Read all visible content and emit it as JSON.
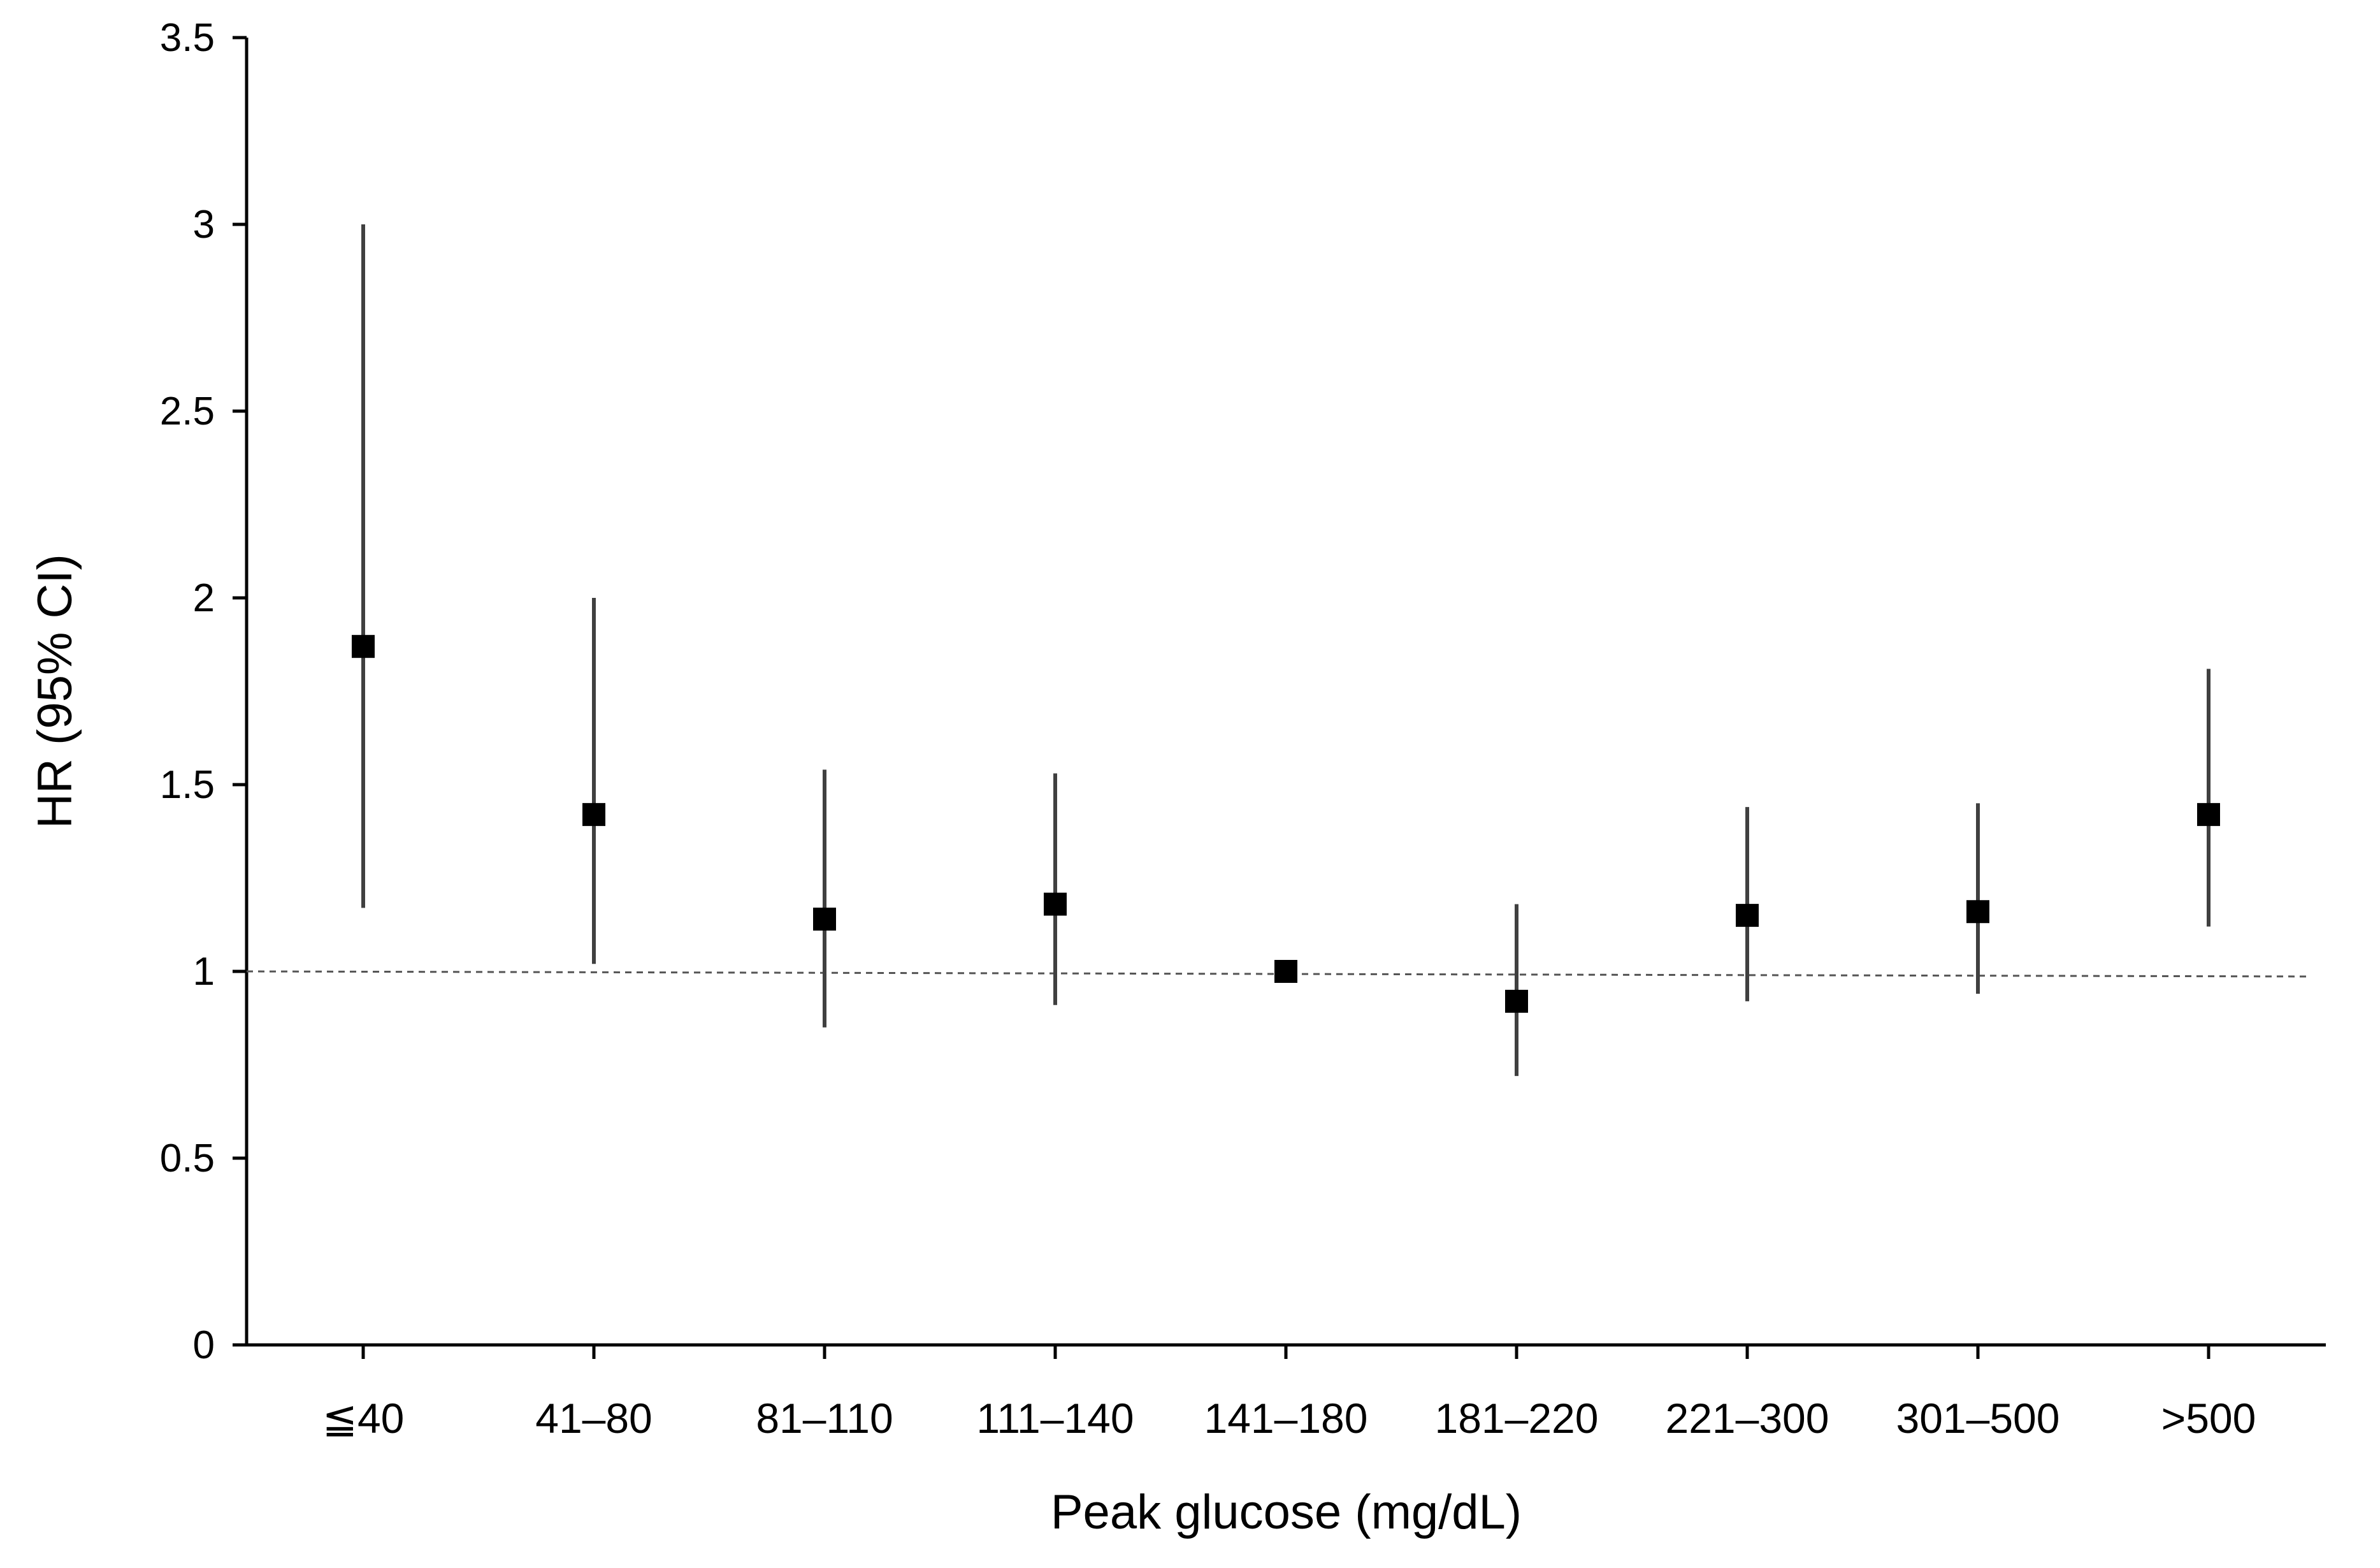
{
  "chart_data": {
    "type": "scatter",
    "subtype": "error-bar",
    "xlabel": "Peak glucose (mg/dL)",
    "ylabel": "HR (95% CI)",
    "categories": [
      "≦40",
      "41–80",
      "81–110",
      "111–140",
      "141–180",
      "181–220",
      "221–300",
      "301–500",
      ">500"
    ],
    "values": [
      1.87,
      1.42,
      1.14,
      1.18,
      1.0,
      0.92,
      1.15,
      1.16,
      1.42
    ],
    "lower": [
      1.17,
      1.02,
      0.85,
      0.91,
      1.0,
      0.72,
      0.92,
      0.94,
      1.12
    ],
    "upper": [
      3.0,
      2.0,
      1.54,
      1.53,
      1.0,
      1.18,
      1.44,
      1.45,
      1.81
    ],
    "ylim": [
      0,
      3.5
    ],
    "yticks": [
      "0",
      "0.5",
      "1",
      "1.5",
      "2",
      "2.5",
      "3",
      "3.5"
    ],
    "reference_line": 1,
    "grid": false,
    "legend": "none",
    "colors": {
      "marker": "#000000",
      "errorbar": "#404040",
      "axis": "#000000",
      "reference": "#555555"
    }
  }
}
